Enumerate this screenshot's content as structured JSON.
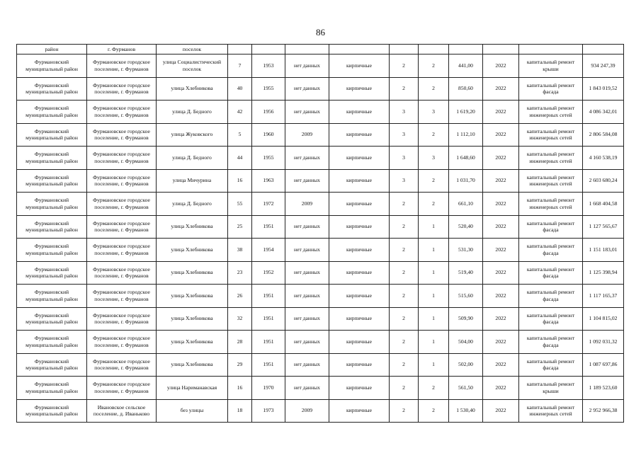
{
  "page_number": "86",
  "table": {
    "first_row": [
      "район",
      "г. Фурманов",
      "поселок",
      "",
      "",
      "",
      "",
      "",
      "",
      "",
      "",
      "",
      ""
    ],
    "rows": [
      [
        "Фурмановский муниципальный район",
        "Фурмановское городское поселение, г. Фурманов",
        "улица Социалистический поселок",
        "7",
        "1953",
        "нет данных",
        "кирпичные",
        "2",
        "2",
        "441,00",
        "2022",
        "капитальный ремонт крыши",
        "934 247,39"
      ],
      [
        "Фурмановский муниципальный район",
        "Фурмановское городское поселение, г. Фурманов",
        "улица Хлебникова",
        "40",
        "1955",
        "нет данных",
        "кирпичные",
        "2",
        "2",
        "850,60",
        "2022",
        "капитальный ремонт фасада",
        "1 843 019,52"
      ],
      [
        "Фурмановский муниципальный район",
        "Фурмановское городское поселение, г. Фурманов",
        "улица Д. Бедного",
        "42",
        "1956",
        "нет данных",
        "кирпичные",
        "3",
        "3",
        "1 619,20",
        "2022",
        "капитальный ремонт инженерных сетей",
        "4 086 342,01"
      ],
      [
        "Фурмановский муниципальный район",
        "Фурмановское городское поселение, г. Фурманов",
        "улица Жуковского",
        "5",
        "1960",
        "2009",
        "кирпичные",
        "3",
        "2",
        "1 112,10",
        "2022",
        "капитальный ремонт инженерных сетей",
        "2 806 584,08"
      ],
      [
        "Фурмановский муниципальный район",
        "Фурмановское городское поселение, г. Фурманов",
        "улица Д. Бедного",
        "44",
        "1955",
        "нет данных",
        "кирпичные",
        "3",
        "3",
        "1 648,60",
        "2022",
        "капитальный ремонт инженерных сетей",
        "4 160 538,19"
      ],
      [
        "Фурмановский муниципальный район",
        "Фурмановское городское поселение, г. Фурманов",
        "улица Мичурина",
        "16",
        "1963",
        "нет данных",
        "кирпичные",
        "3",
        "2",
        "1 031,70",
        "2022",
        "капитальный ремонт инженерных сетей",
        "2 603 680,24"
      ],
      [
        "Фурмановский муниципальный район",
        "Фурмановское городское поселение, г. Фурманов",
        "улица Д. Бедного",
        "55",
        "1972",
        "2009",
        "кирпичные",
        "2",
        "2",
        "661,10",
        "2022",
        "капитальный ремонт инженерных сетей",
        "1 668 404,58"
      ],
      [
        "Фурмановский муниципальный район",
        "Фурмановское городское поселение, г. Фурманов",
        "улица Хлебникова",
        "25",
        "1951",
        "нет данных",
        "кирпичные",
        "2",
        "1",
        "520,40",
        "2022",
        "капитальный ремонт фасада",
        "1 127 565,67"
      ],
      [
        "Фурмановский муниципальный район",
        "Фурмановское городское поселение, г. Фурманов",
        "улица Хлебникова",
        "38",
        "1954",
        "нет данных",
        "кирпичные",
        "2",
        "1",
        "531,30",
        "2022",
        "капитальный ремонт фасада",
        "1 151 183,01"
      ],
      [
        "Фурмановский муниципальный район",
        "Фурмановское городское поселение, г. Фурманов",
        "улица Хлебникова",
        "23",
        "1952",
        "нет данных",
        "кирпичные",
        "2",
        "1",
        "519,40",
        "2022",
        "капитальный ремонт фасада",
        "1 125 398,94"
      ],
      [
        "Фурмановский муниципальный район",
        "Фурмановское городское поселение, г. Фурманов",
        "улица Хлебникова",
        "26",
        "1951",
        "нет данных",
        "кирпичные",
        "2",
        "1",
        "515,60",
        "2022",
        "капитальный ремонт фасада",
        "1 117 165,37"
      ],
      [
        "Фурмановский муниципальный район",
        "Фурмановское городское поселение, г. Фурманов",
        "улица Хлебникова",
        "32",
        "1951",
        "нет данных",
        "кирпичные",
        "2",
        "1",
        "509,90",
        "2022",
        "капитальный ремонт фасада",
        "1 104 815,02"
      ],
      [
        "Фурмановский муниципальный район",
        "Фурмановское городское поселение, г. Фурманов",
        "улица Хлебникова",
        "28",
        "1951",
        "нет данных",
        "кирпичные",
        "2",
        "1",
        "504,00",
        "2022",
        "капитальный ремонт фасада",
        "1 092 031,32"
      ],
      [
        "Фурмановский муниципальный район",
        "Фурмановское городское поселение, г. Фурманов",
        "улица Хлебникова",
        "29",
        "1951",
        "нет данных",
        "кирпичные",
        "2",
        "1",
        "502,00",
        "2022",
        "капитальный ремонт фасада",
        "1 087 697,86"
      ],
      [
        "Фурмановский муниципальный район",
        "Фурмановское городское поселение, г. Фурманов",
        "улица Нариманавская",
        "16",
        "1970",
        "нет данных",
        "кирпичные",
        "2",
        "2",
        "561,50",
        "2022",
        "капитальный ремонт крыши",
        "1 189 523,60"
      ],
      [
        "Фурмановский муниципальный район",
        "Ивановское сельское поселение, д. Иваньково",
        "без улицы",
        "18",
        "1973",
        "2009",
        "кирпичные",
        "2",
        "2",
        "1 530,40",
        "2022",
        "капитальный ремонт инженерных сетей",
        "2 952 966,38"
      ]
    ]
  }
}
